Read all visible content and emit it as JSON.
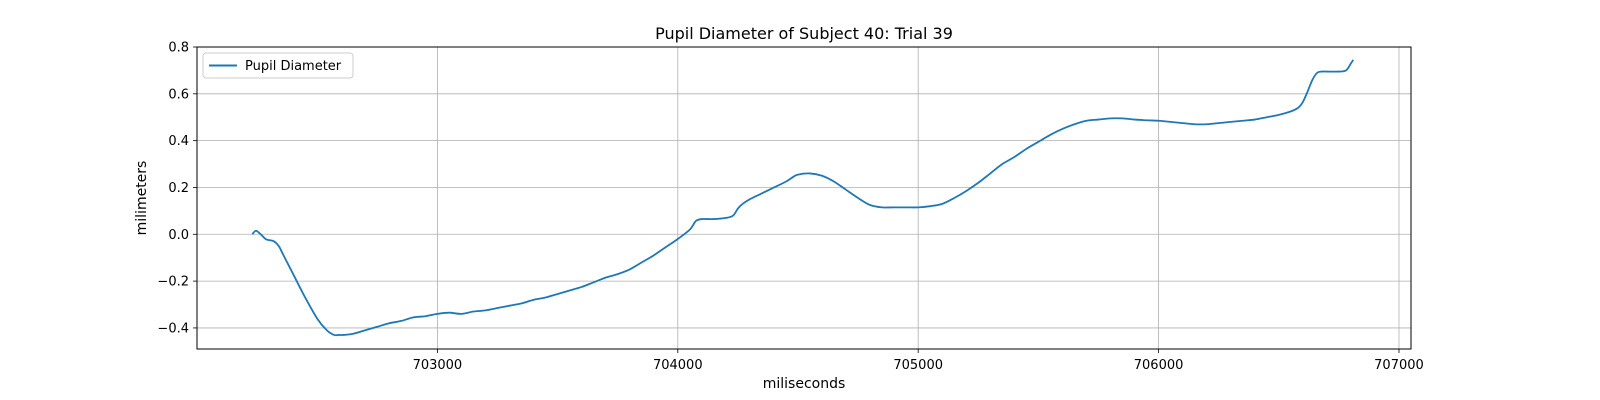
{
  "chart_data": {
    "type": "line",
    "title": "Pupil Diameter of Subject 40: Trial 39",
    "xlabel": "miliseconds",
    "ylabel": "milimeters",
    "xlim": [
      702000,
      707050
    ],
    "ylim": [
      -0.49,
      0.8
    ],
    "xticks": [
      703000,
      704000,
      705000,
      706000,
      707000
    ],
    "yticks": [
      -0.4,
      -0.2,
      0.0,
      0.2,
      0.4,
      0.6,
      0.8
    ],
    "xtick_labels": [
      "703000",
      "704000",
      "705000",
      "706000",
      "707000"
    ],
    "ytick_labels": [
      "−0.4",
      "−0.2",
      "0.0",
      "0.2",
      "0.4",
      "0.6",
      "0.8"
    ],
    "grid": true,
    "legend": {
      "position": "upper-left",
      "entries": [
        "Pupil Diameter"
      ]
    },
    "series": [
      {
        "name": "Pupil Diameter",
        "color": "#1f77b4",
        "x": [
          702230,
          702245,
          702265,
          702285,
          702300,
          702320,
          702340,
          702360,
          702400,
          702450,
          702500,
          702540,
          702570,
          702590,
          702610,
          702650,
          702700,
          702750,
          702800,
          702850,
          702900,
          702950,
          703000,
          703050,
          703100,
          703150,
          703200,
          703250,
          703300,
          703350,
          703400,
          703450,
          703500,
          703550,
          703600,
          703650,
          703700,
          703750,
          703800,
          703850,
          703900,
          703950,
          704000,
          704050,
          704070,
          704080,
          704100,
          704150,
          704200,
          704230,
          704250,
          704270,
          704300,
          704350,
          704400,
          704450,
          704480,
          704500,
          704550,
          704600,
          704650,
          704700,
          704750,
          704800,
          704850,
          704900,
          704950,
          705000,
          705050,
          705100,
          705150,
          705200,
          705250,
          705300,
          705350,
          705400,
          705450,
          705500,
          705550,
          705600,
          705650,
          705700,
          705750,
          705800,
          705850,
          705900,
          705950,
          706000,
          706050,
          706100,
          706150,
          706200,
          706250,
          706300,
          706350,
          706400,
          706450,
          706500,
          706550,
          706580,
          706600,
          706620,
          706640,
          706660,
          706680,
          706700,
          706750,
          706780,
          706800,
          706810
        ],
        "values": [
          0.0,
          0.015,
          0.0,
          -0.02,
          -0.025,
          -0.03,
          -0.05,
          -0.09,
          -0.17,
          -0.27,
          -0.36,
          -0.41,
          -0.43,
          -0.43,
          -0.43,
          -0.425,
          -0.41,
          -0.395,
          -0.38,
          -0.37,
          -0.355,
          -0.35,
          -0.34,
          -0.335,
          -0.34,
          -0.33,
          -0.325,
          -0.315,
          -0.305,
          -0.295,
          -0.28,
          -0.27,
          -0.255,
          -0.24,
          -0.225,
          -0.205,
          -0.185,
          -0.17,
          -0.15,
          -0.12,
          -0.09,
          -0.055,
          -0.02,
          0.02,
          0.05,
          0.06,
          0.065,
          0.065,
          0.07,
          0.08,
          0.11,
          0.13,
          0.15,
          0.175,
          0.2,
          0.225,
          0.245,
          0.255,
          0.26,
          0.25,
          0.225,
          0.19,
          0.155,
          0.125,
          0.115,
          0.115,
          0.115,
          0.115,
          0.12,
          0.13,
          0.155,
          0.185,
          0.22,
          0.26,
          0.3,
          0.33,
          0.365,
          0.395,
          0.425,
          0.45,
          0.47,
          0.485,
          0.49,
          0.495,
          0.495,
          0.49,
          0.487,
          0.485,
          0.48,
          0.475,
          0.47,
          0.47,
          0.475,
          0.48,
          0.485,
          0.49,
          0.5,
          0.51,
          0.525,
          0.54,
          0.565,
          0.61,
          0.66,
          0.69,
          0.695,
          0.695,
          0.695,
          0.7,
          0.73,
          0.745
        ]
      }
    ]
  }
}
